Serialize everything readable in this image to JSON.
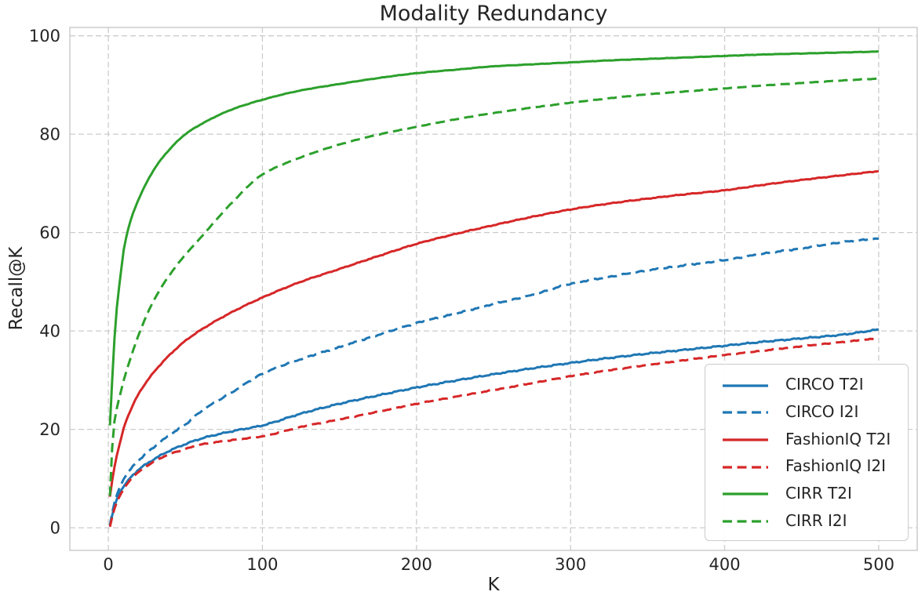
{
  "chart_data": {
    "type": "line",
    "title": "Modality Redundancy",
    "xlabel": "K",
    "ylabel": "Recall@K",
    "xlim": [
      -25,
      525
    ],
    "ylim": [
      -4.6,
      101.7
    ],
    "xticks": [
      0,
      100,
      200,
      300,
      400,
      500
    ],
    "yticks": [
      0,
      20,
      40,
      60,
      80,
      100
    ],
    "grid": "dashed-both-axes",
    "grid_color": "#cccccc",
    "spine_color": "#c9c9c9",
    "text_color": "#252525",
    "legend_position": "lower right",
    "series": [
      {
        "name": "CIRCO T2I",
        "color": "#1f77b4",
        "style": "solid",
        "points": [
          [
            1,
            0.4
          ],
          [
            2,
            1.8
          ],
          [
            3,
            3.2
          ],
          [
            5,
            5.4
          ],
          [
            8,
            7.4
          ],
          [
            10,
            8.4
          ],
          [
            15,
            10.4
          ],
          [
            20,
            11.9
          ],
          [
            30,
            14.0
          ],
          [
            40,
            15.7
          ],
          [
            50,
            17.0
          ],
          [
            60,
            18.1
          ],
          [
            80,
            19.6
          ],
          [
            100,
            20.8
          ],
          [
            125,
            23.2
          ],
          [
            150,
            25.2
          ],
          [
            175,
            26.9
          ],
          [
            200,
            28.5
          ],
          [
            225,
            29.9
          ],
          [
            250,
            31.2
          ],
          [
            275,
            32.4
          ],
          [
            300,
            33.5
          ],
          [
            325,
            34.5
          ],
          [
            350,
            35.4
          ],
          [
            375,
            36.2
          ],
          [
            400,
            37.0
          ],
          [
            425,
            37.8
          ],
          [
            450,
            38.5
          ],
          [
            475,
            39.2
          ],
          [
            500,
            40.3
          ]
        ]
      },
      {
        "name": "CIRCO I2I",
        "color": "#1f77b4",
        "style": "dashed",
        "points": [
          [
            1,
            0.5
          ],
          [
            2,
            2.2
          ],
          [
            3,
            3.8
          ],
          [
            5,
            6.2
          ],
          [
            8,
            8.6
          ],
          [
            10,
            9.9
          ],
          [
            15,
            12.1
          ],
          [
            20,
            13.8
          ],
          [
            30,
            16.5
          ],
          [
            40,
            18.9
          ],
          [
            50,
            21.0
          ],
          [
            60,
            23.6
          ],
          [
            80,
            27.5
          ],
          [
            100,
            31.3
          ],
          [
            125,
            34.3
          ],
          [
            150,
            36.7
          ],
          [
            175,
            39.2
          ],
          [
            200,
            41.6
          ],
          [
            225,
            43.5
          ],
          [
            250,
            45.5
          ],
          [
            275,
            47.3
          ],
          [
            300,
            49.6
          ],
          [
            325,
            51.0
          ],
          [
            350,
            52.3
          ],
          [
            375,
            53.4
          ],
          [
            400,
            54.4
          ],
          [
            425,
            55.7
          ],
          [
            450,
            56.8
          ],
          [
            475,
            58.0
          ],
          [
            500,
            58.8
          ]
        ]
      },
      {
        "name": "FashionIQ T2I",
        "color": "#d62728",
        "style": "solid",
        "points": [
          [
            1,
            6.3
          ],
          [
            2,
            8.6
          ],
          [
            3,
            10.5
          ],
          [
            5,
            14.0
          ],
          [
            8,
            17.8
          ],
          [
            10,
            20.3
          ],
          [
            15,
            24.3
          ],
          [
            20,
            27.4
          ],
          [
            30,
            31.8
          ],
          [
            40,
            35.2
          ],
          [
            50,
            38.0
          ],
          [
            60,
            40.2
          ],
          [
            80,
            43.8
          ],
          [
            100,
            46.8
          ],
          [
            125,
            50.0
          ],
          [
            150,
            52.6
          ],
          [
            175,
            55.2
          ],
          [
            200,
            57.7
          ],
          [
            225,
            59.7
          ],
          [
            250,
            61.5
          ],
          [
            275,
            63.2
          ],
          [
            300,
            64.7
          ],
          [
            325,
            65.9
          ],
          [
            350,
            66.9
          ],
          [
            375,
            67.8
          ],
          [
            400,
            68.6
          ],
          [
            425,
            69.7
          ],
          [
            450,
            70.7
          ],
          [
            475,
            71.6
          ],
          [
            500,
            72.5
          ]
        ]
      },
      {
        "name": "FashionIQ I2I",
        "color": "#d62728",
        "style": "dashed",
        "points": [
          [
            1,
            0.2
          ],
          [
            2,
            1.5
          ],
          [
            3,
            2.8
          ],
          [
            5,
            4.8
          ],
          [
            8,
            6.8
          ],
          [
            10,
            7.9
          ],
          [
            15,
            10.0
          ],
          [
            20,
            11.4
          ],
          [
            30,
            13.5
          ],
          [
            40,
            15.0
          ],
          [
            50,
            16.0
          ],
          [
            60,
            16.9
          ],
          [
            80,
            17.8
          ],
          [
            100,
            18.6
          ],
          [
            125,
            20.5
          ],
          [
            150,
            22.0
          ],
          [
            175,
            23.6
          ],
          [
            200,
            25.2
          ],
          [
            225,
            26.6
          ],
          [
            250,
            28.0
          ],
          [
            275,
            29.4
          ],
          [
            300,
            30.8
          ],
          [
            325,
            32.0
          ],
          [
            350,
            33.1
          ],
          [
            375,
            34.1
          ],
          [
            400,
            35.1
          ],
          [
            425,
            36.0
          ],
          [
            450,
            36.9
          ],
          [
            475,
            37.7
          ],
          [
            500,
            38.5
          ]
        ]
      },
      {
        "name": "CIRR T2I",
        "color": "#2ca02c",
        "style": "solid",
        "points": [
          [
            1,
            20.8
          ],
          [
            2,
            27.0
          ],
          [
            3,
            33.0
          ],
          [
            5,
            43.0
          ],
          [
            8,
            51.5
          ],
          [
            10,
            56.5
          ],
          [
            15,
            63.0
          ],
          [
            20,
            67.0
          ],
          [
            30,
            73.0
          ],
          [
            40,
            77.0
          ],
          [
            50,
            80.0
          ],
          [
            60,
            82.0
          ],
          [
            80,
            85.0
          ],
          [
            100,
            87.0
          ],
          [
            125,
            88.9
          ],
          [
            150,
            90.2
          ],
          [
            175,
            91.4
          ],
          [
            200,
            92.4
          ],
          [
            225,
            93.1
          ],
          [
            250,
            93.8
          ],
          [
            275,
            94.2
          ],
          [
            300,
            94.6
          ],
          [
            325,
            95.0
          ],
          [
            350,
            95.3
          ],
          [
            375,
            95.6
          ],
          [
            400,
            95.9
          ],
          [
            425,
            96.2
          ],
          [
            450,
            96.4
          ],
          [
            475,
            96.6
          ],
          [
            500,
            96.8
          ]
        ]
      },
      {
        "name": "CIRR I2I",
        "color": "#2ca02c",
        "style": "dashed",
        "points": [
          [
            1,
            6.5
          ],
          [
            2,
            13.0
          ],
          [
            3,
            19.0
          ],
          [
            5,
            23.5
          ],
          [
            8,
            27.5
          ],
          [
            10,
            30.0
          ],
          [
            15,
            35.0
          ],
          [
            20,
            39.5
          ],
          [
            30,
            46.5
          ],
          [
            40,
            51.5
          ],
          [
            50,
            55.5
          ],
          [
            60,
            59.0
          ],
          [
            80,
            66.0
          ],
          [
            100,
            71.8
          ],
          [
            125,
            75.3
          ],
          [
            150,
            77.9
          ],
          [
            175,
            79.9
          ],
          [
            200,
            81.5
          ],
          [
            225,
            83.0
          ],
          [
            250,
            84.3
          ],
          [
            275,
            85.4
          ],
          [
            300,
            86.4
          ],
          [
            325,
            87.3
          ],
          [
            350,
            88.1
          ],
          [
            375,
            88.7
          ],
          [
            400,
            89.3
          ],
          [
            425,
            89.9
          ],
          [
            450,
            90.4
          ],
          [
            475,
            90.9
          ],
          [
            500,
            91.3
          ]
        ]
      }
    ]
  }
}
